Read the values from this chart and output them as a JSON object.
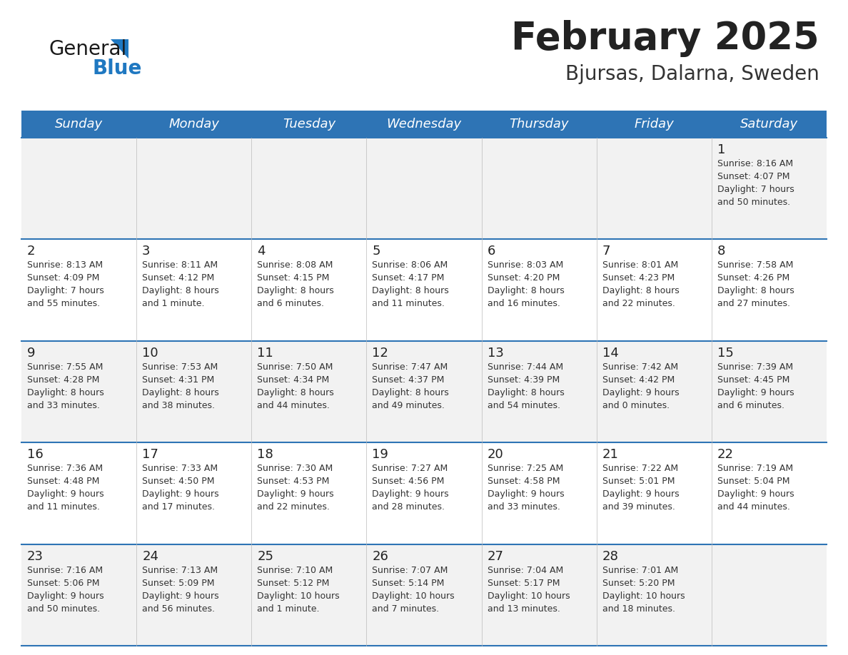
{
  "title": "February 2025",
  "subtitle": "Bjursas, Dalarna, Sweden",
  "days_of_week": [
    "Sunday",
    "Monday",
    "Tuesday",
    "Wednesday",
    "Thursday",
    "Friday",
    "Saturday"
  ],
  "header_bg": "#2E74B5",
  "header_text": "#FFFFFF",
  "row_bg_odd": "#F2F2F2",
  "row_bg_even": "#FFFFFF",
  "separator_color": "#2E74B5",
  "day_number_color": "#222222",
  "cell_text_color": "#333333",
  "title_color": "#222222",
  "subtitle_color": "#333333",
  "logo_general_color": "#1a1a1a",
  "logo_blue_color": "#1F78C1",
  "calendar_data": [
    {
      "day": 1,
      "col": 6,
      "row": 0,
      "sunrise": "8:16 AM",
      "sunset": "4:07 PM",
      "daylight": "7 hours and 50 minutes."
    },
    {
      "day": 2,
      "col": 0,
      "row": 1,
      "sunrise": "8:13 AM",
      "sunset": "4:09 PM",
      "daylight": "7 hours and 55 minutes."
    },
    {
      "day": 3,
      "col": 1,
      "row": 1,
      "sunrise": "8:11 AM",
      "sunset": "4:12 PM",
      "daylight": "8 hours and 1 minute."
    },
    {
      "day": 4,
      "col": 2,
      "row": 1,
      "sunrise": "8:08 AM",
      "sunset": "4:15 PM",
      "daylight": "8 hours and 6 minutes."
    },
    {
      "day": 5,
      "col": 3,
      "row": 1,
      "sunrise": "8:06 AM",
      "sunset": "4:17 PM",
      "daylight": "8 hours and 11 minutes."
    },
    {
      "day": 6,
      "col": 4,
      "row": 1,
      "sunrise": "8:03 AM",
      "sunset": "4:20 PM",
      "daylight": "8 hours and 16 minutes."
    },
    {
      "day": 7,
      "col": 5,
      "row": 1,
      "sunrise": "8:01 AM",
      "sunset": "4:23 PM",
      "daylight": "8 hours and 22 minutes."
    },
    {
      "day": 8,
      "col": 6,
      "row": 1,
      "sunrise": "7:58 AM",
      "sunset": "4:26 PM",
      "daylight": "8 hours and 27 minutes."
    },
    {
      "day": 9,
      "col": 0,
      "row": 2,
      "sunrise": "7:55 AM",
      "sunset": "4:28 PM",
      "daylight": "8 hours and 33 minutes."
    },
    {
      "day": 10,
      "col": 1,
      "row": 2,
      "sunrise": "7:53 AM",
      "sunset": "4:31 PM",
      "daylight": "8 hours and 38 minutes."
    },
    {
      "day": 11,
      "col": 2,
      "row": 2,
      "sunrise": "7:50 AM",
      "sunset": "4:34 PM",
      "daylight": "8 hours and 44 minutes."
    },
    {
      "day": 12,
      "col": 3,
      "row": 2,
      "sunrise": "7:47 AM",
      "sunset": "4:37 PM",
      "daylight": "8 hours and 49 minutes."
    },
    {
      "day": 13,
      "col": 4,
      "row": 2,
      "sunrise": "7:44 AM",
      "sunset": "4:39 PM",
      "daylight": "8 hours and 54 minutes."
    },
    {
      "day": 14,
      "col": 5,
      "row": 2,
      "sunrise": "7:42 AM",
      "sunset": "4:42 PM",
      "daylight": "9 hours and 0 minutes."
    },
    {
      "day": 15,
      "col": 6,
      "row": 2,
      "sunrise": "7:39 AM",
      "sunset": "4:45 PM",
      "daylight": "9 hours and 6 minutes."
    },
    {
      "day": 16,
      "col": 0,
      "row": 3,
      "sunrise": "7:36 AM",
      "sunset": "4:48 PM",
      "daylight": "9 hours and 11 minutes."
    },
    {
      "day": 17,
      "col": 1,
      "row": 3,
      "sunrise": "7:33 AM",
      "sunset": "4:50 PM",
      "daylight": "9 hours and 17 minutes."
    },
    {
      "day": 18,
      "col": 2,
      "row": 3,
      "sunrise": "7:30 AM",
      "sunset": "4:53 PM",
      "daylight": "9 hours and 22 minutes."
    },
    {
      "day": 19,
      "col": 3,
      "row": 3,
      "sunrise": "7:27 AM",
      "sunset": "4:56 PM",
      "daylight": "9 hours and 28 minutes."
    },
    {
      "day": 20,
      "col": 4,
      "row": 3,
      "sunrise": "7:25 AM",
      "sunset": "4:58 PM",
      "daylight": "9 hours and 33 minutes."
    },
    {
      "day": 21,
      "col": 5,
      "row": 3,
      "sunrise": "7:22 AM",
      "sunset": "5:01 PM",
      "daylight": "9 hours and 39 minutes."
    },
    {
      "day": 22,
      "col": 6,
      "row": 3,
      "sunrise": "7:19 AM",
      "sunset": "5:04 PM",
      "daylight": "9 hours and 44 minutes."
    },
    {
      "day": 23,
      "col": 0,
      "row": 4,
      "sunrise": "7:16 AM",
      "sunset": "5:06 PM",
      "daylight": "9 hours and 50 minutes."
    },
    {
      "day": 24,
      "col": 1,
      "row": 4,
      "sunrise": "7:13 AM",
      "sunset": "5:09 PM",
      "daylight": "9 hours and 56 minutes."
    },
    {
      "day": 25,
      "col": 2,
      "row": 4,
      "sunrise": "7:10 AM",
      "sunset": "5:12 PM",
      "daylight": "10 hours and 1 minute."
    },
    {
      "day": 26,
      "col": 3,
      "row": 4,
      "sunrise": "7:07 AM",
      "sunset": "5:14 PM",
      "daylight": "10 hours and 7 minutes."
    },
    {
      "day": 27,
      "col": 4,
      "row": 4,
      "sunrise": "7:04 AM",
      "sunset": "5:17 PM",
      "daylight": "10 hours and 13 minutes."
    },
    {
      "day": 28,
      "col": 5,
      "row": 4,
      "sunrise": "7:01 AM",
      "sunset": "5:20 PM",
      "daylight": "10 hours and 18 minutes."
    }
  ]
}
